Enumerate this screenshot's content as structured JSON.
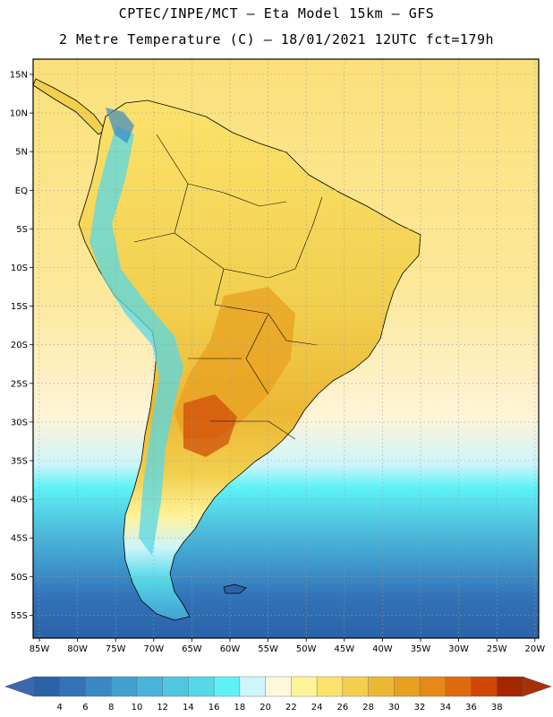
{
  "header": {
    "line1": "CPTEC/INPE/MCT –  Eta Model 15km – GFS",
    "line2": "2 Metre Temperature (C) – 18/01/2021 12UTC fct=179h"
  },
  "map": {
    "region": "South America",
    "lat_labels": [
      "15N",
      "10N",
      "5N",
      "EQ",
      "5S",
      "10S",
      "15S",
      "20S",
      "25S",
      "30S",
      "35S",
      "40S",
      "45S",
      "50S",
      "55S"
    ],
    "lon_labels": [
      "85W",
      "80W",
      "75W",
      "70W",
      "65W",
      "60W",
      "55W",
      "50W",
      "45W",
      "40W",
      "35W",
      "30W",
      "25W",
      "20W"
    ]
  },
  "legend": {
    "units": "C",
    "ticks": [
      "4",
      "6",
      "8",
      "10",
      "12",
      "14",
      "16",
      "18",
      "20",
      "22",
      "24",
      "26",
      "28",
      "30",
      "32",
      "34",
      "36",
      "38"
    ],
    "colors": [
      "#2a62a8",
      "#3372b7",
      "#3a88c4",
      "#41a0d0",
      "#49b4d9",
      "#50c6e0",
      "#55d8e8",
      "#5ef2f6",
      "#cdf5fb",
      "#fff7dc",
      "#fff39a",
      "#fbe26c",
      "#f2cf4e",
      "#ecb834",
      "#e8a020",
      "#e68a16",
      "#df6a0c",
      "#cf4605",
      "#a52702"
    ],
    "low_color": "#3a68b0",
    "high_color": "#a83008"
  }
}
